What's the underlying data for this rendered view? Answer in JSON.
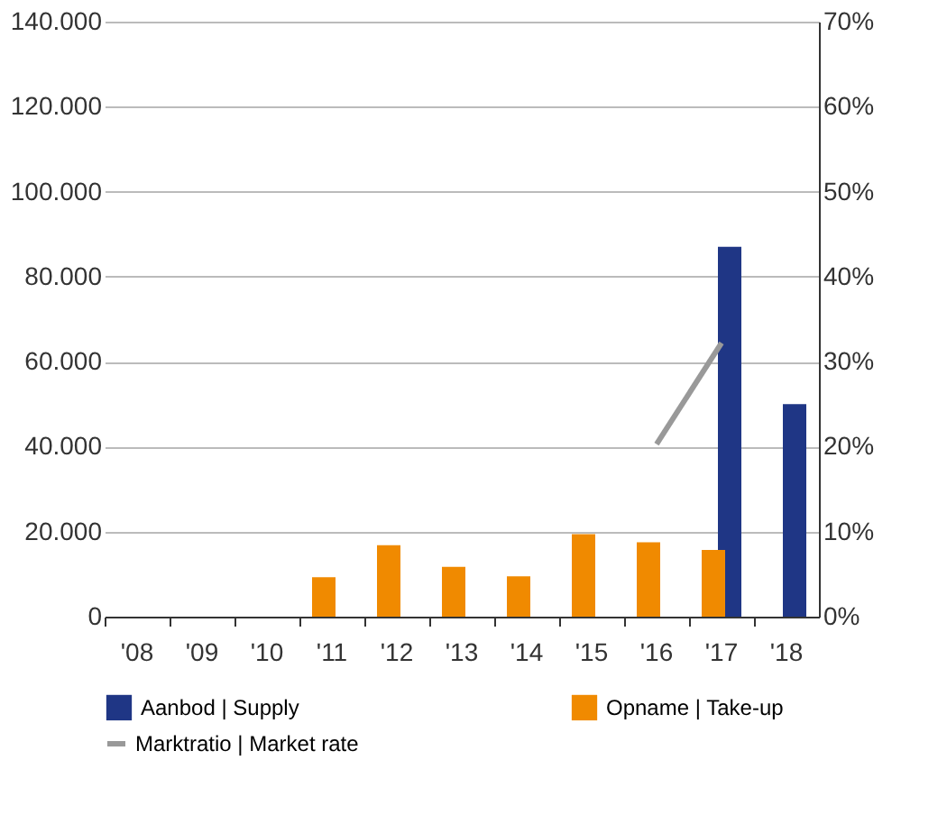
{
  "chart_data": {
    "type": "bar",
    "categories": [
      "'08",
      "'09",
      "'10",
      "'11",
      "'12",
      "'13",
      "'14",
      "'15",
      "'16",
      "'17",
      "'18"
    ],
    "series": [
      {
        "name": "Aanbod | Supply",
        "color": "#1f3685",
        "values": [
          null,
          null,
          null,
          null,
          null,
          null,
          null,
          null,
          null,
          87000,
          50000
        ]
      },
      {
        "name": "Opname | Take-up",
        "color": "#f08a00",
        "values": [
          null,
          null,
          null,
          9300,
          16800,
          11700,
          9500,
          19400,
          17500,
          15700,
          null
        ]
      },
      {
        "name": "Marktratio | Market rate",
        "type": "line",
        "axis": "y2",
        "color": "#999999",
        "values": [
          null,
          null,
          null,
          null,
          null,
          null,
          null,
          null,
          20.3,
          32.2,
          null
        ]
      }
    ],
    "ylim": [
      0,
      140000
    ],
    "yticks": [
      {
        "value": 0,
        "label": "0"
      },
      {
        "value": 20000,
        "label": "20.000"
      },
      {
        "value": 40000,
        "label": "40.000"
      },
      {
        "value": 60000,
        "label": "60.000"
      },
      {
        "value": 80000,
        "label": "80.000"
      },
      {
        "value": 100000,
        "label": "100.000"
      },
      {
        "value": 120000,
        "label": "120.000"
      },
      {
        "value": 140000,
        "label": "140.000"
      }
    ],
    "y2lim": [
      0,
      70
    ],
    "y2ticks": [
      {
        "value": 0,
        "label": "0%"
      },
      {
        "value": 10,
        "label": "10%"
      },
      {
        "value": 20,
        "label": "20%"
      },
      {
        "value": 30,
        "label": "30%"
      },
      {
        "value": 40,
        "label": "40%"
      },
      {
        "value": 50,
        "label": "50%"
      },
      {
        "value": 60,
        "label": "60%"
      },
      {
        "value": 70,
        "label": "70%"
      }
    ],
    "grid": "y",
    "legend": "bottom"
  }
}
